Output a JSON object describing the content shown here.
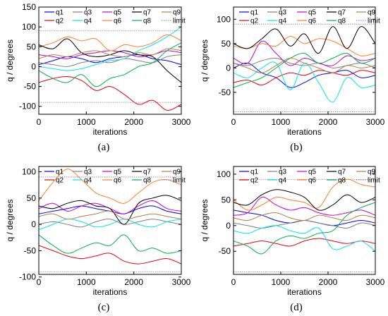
{
  "figure": {
    "captions": [
      "(a)",
      "(b)",
      "(c)",
      "(d)"
    ]
  },
  "colors": {
    "q1": "#0000ff",
    "q2": "#e8000b",
    "q3": "#7f7f7f",
    "q4": "#00e5ff",
    "q5": "#cc00cc",
    "q6": "#ff7f27",
    "q7": "#000000",
    "q8": "#00b050",
    "q9": "#b08040",
    "limit": "#808080"
  },
  "chart_data": [
    {
      "type": "line",
      "caption": "(a)",
      "xlabel": "iterations",
      "ylabel": "q / degrees",
      "xlim": [
        0,
        3000
      ],
      "ylim": [
        -120,
        150
      ],
      "xticks": [
        0,
        1000,
        2000,
        3000
      ],
      "yticks": [
        -100,
        -50,
        0,
        50,
        100,
        150
      ],
      "limit": [
        -90,
        90
      ],
      "legend": [
        "q1",
        "q2",
        "q3",
        "q4",
        "q5",
        "q6",
        "q7",
        "q8",
        "q9",
        "limit"
      ],
      "x": [
        0,
        300,
        600,
        900,
        1200,
        1500,
        1800,
        2100,
        2400,
        2700,
        3000
      ],
      "series": [
        {
          "name": "q1",
          "values": [
            5,
            15,
            25,
            20,
            10,
            20,
            25,
            30,
            20,
            15,
            5
          ]
        },
        {
          "name": "q2",
          "values": [
            -40,
            -30,
            -25,
            -35,
            -60,
            -50,
            -70,
            -95,
            -85,
            -110,
            -95
          ]
        },
        {
          "name": "q3",
          "values": [
            10,
            5,
            0,
            10,
            15,
            10,
            20,
            15,
            10,
            25,
            30
          ]
        },
        {
          "name": "q4",
          "values": [
            0,
            -5,
            -10,
            -5,
            5,
            15,
            20,
            40,
            55,
            75,
            100
          ]
        },
        {
          "name": "q5",
          "values": [
            30,
            25,
            20,
            30,
            35,
            40,
            35,
            25,
            30,
            40,
            35
          ]
        },
        {
          "name": "q6",
          "values": [
            50,
            60,
            75,
            65,
            70,
            40,
            55,
            50,
            60,
            80,
            65
          ]
        },
        {
          "name": "q7",
          "values": [
            55,
            45,
            70,
            35,
            25,
            30,
            40,
            30,
            25,
            -10,
            -40
          ]
        },
        {
          "name": "q8",
          "values": [
            -10,
            -30,
            -40,
            -20,
            -50,
            -30,
            -20,
            0,
            10,
            40,
            60
          ]
        },
        {
          "name": "q9",
          "values": [
            20,
            30,
            25,
            35,
            40,
            30,
            25,
            35,
            30,
            45,
            40
          ]
        }
      ]
    },
    {
      "type": "line",
      "caption": "(b)",
      "xlabel": "iterations",
      "ylabel": "q / degrees",
      "xlim": [
        0,
        3000
      ],
      "ylim": [
        -95,
        125
      ],
      "xticks": [
        0,
        1000,
        2000,
        3000
      ],
      "yticks": [
        -50,
        0,
        50,
        100
      ],
      "limit": [
        -90,
        90
      ],
      "legend": [
        "q1",
        "q2",
        "q3",
        "q4",
        "q5",
        "q6",
        "q7",
        "q8",
        "q9",
        "limit"
      ],
      "x": [
        0,
        300,
        600,
        900,
        1200,
        1500,
        1800,
        2100,
        2400,
        2700,
        3000
      ],
      "series": [
        {
          "name": "q1",
          "values": [
            0,
            10,
            -10,
            -20,
            -40,
            -30,
            -15,
            -10,
            -5,
            -20,
            -15
          ]
        },
        {
          "name": "q2",
          "values": [
            -30,
            -25,
            -35,
            -20,
            -10,
            -15,
            -5,
            -10,
            -15,
            -5,
            -10
          ]
        },
        {
          "name": "q3",
          "values": [
            10,
            5,
            15,
            20,
            10,
            5,
            10,
            0,
            5,
            10,
            0
          ]
        },
        {
          "name": "q4",
          "values": [
            -10,
            -20,
            0,
            10,
            -45,
            10,
            -30,
            -70,
            -20,
            -40,
            -35
          ]
        },
        {
          "name": "q5",
          "values": [
            20,
            10,
            55,
            30,
            5,
            20,
            10,
            5,
            25,
            15,
            20
          ]
        },
        {
          "name": "q6",
          "values": [
            45,
            40,
            50,
            45,
            65,
            50,
            60,
            55,
            40,
            25,
            30
          ]
        },
        {
          "name": "q7",
          "values": [
            50,
            40,
            60,
            80,
            45,
            70,
            30,
            85,
            40,
            85,
            50
          ]
        },
        {
          "name": "q8",
          "values": [
            -40,
            -30,
            -20,
            0,
            20,
            30,
            10,
            20,
            30,
            10,
            20
          ]
        },
        {
          "name": "q9",
          "values": [
            10,
            0,
            -10,
            5,
            20,
            10,
            0,
            -10,
            5,
            0,
            5
          ]
        }
      ]
    },
    {
      "type": "line",
      "caption": "(c)",
      "xlabel": "iterations",
      "ylabel": "q / degrees",
      "xlim": [
        0,
        3000
      ],
      "ylim": [
        -95,
        110
      ],
      "xticks": [
        0,
        1000,
        2000,
        3000
      ],
      "yticks": [
        -100,
        -50,
        0,
        50,
        100
      ],
      "limit": [
        -90,
        90
      ],
      "legend": [
        "q1",
        "q2",
        "q3",
        "q4",
        "q5",
        "q6",
        "q7",
        "q8",
        "q9",
        "limit"
      ],
      "x": [
        0,
        300,
        600,
        900,
        1200,
        1500,
        1800,
        2100,
        2400,
        2700,
        3000
      ],
      "series": [
        {
          "name": "q1",
          "values": [
            20,
            25,
            30,
            35,
            30,
            25,
            20,
            30,
            35,
            25,
            20
          ]
        },
        {
          "name": "q2",
          "values": [
            -40,
            -50,
            -60,
            -65,
            -60,
            -55,
            -70,
            -75,
            -70,
            -65,
            -75
          ]
        },
        {
          "name": "q3",
          "values": [
            0,
            5,
            0,
            -5,
            5,
            10,
            0,
            5,
            10,
            5,
            0
          ]
        },
        {
          "name": "q4",
          "values": [
            -10,
            0,
            10,
            5,
            -5,
            0,
            10,
            0,
            -5,
            5,
            10
          ]
        },
        {
          "name": "q5",
          "values": [
            30,
            40,
            25,
            35,
            40,
            30,
            20,
            35,
            45,
            30,
            25
          ]
        },
        {
          "name": "q6",
          "values": [
            45,
            80,
            105,
            85,
            60,
            50,
            40,
            60,
            80,
            85,
            75
          ]
        },
        {
          "name": "q7",
          "values": [
            35,
            30,
            40,
            45,
            35,
            30,
            0,
            40,
            50,
            55,
            45
          ]
        },
        {
          "name": "q8",
          "values": [
            -20,
            -40,
            -55,
            -45,
            -35,
            -40,
            -20,
            -50,
            -45,
            -55,
            -50
          ]
        },
        {
          "name": "q9",
          "values": [
            15,
            20,
            10,
            15,
            20,
            25,
            10,
            15,
            20,
            15,
            10
          ]
        }
      ]
    },
    {
      "type": "line",
      "caption": "(d)",
      "xlabel": "iterations",
      "ylabel": "q / degrees",
      "xlim": [
        0,
        3000
      ],
      "ylim": [
        -95,
        115
      ],
      "xticks": [
        0,
        1000,
        2000,
        3000
      ],
      "yticks": [
        -50,
        0,
        50,
        100
      ],
      "limit": [
        -90,
        90
      ],
      "legend": [
        "q1",
        "q2",
        "q3",
        "q4",
        "q5",
        "q6",
        "q7",
        "q8",
        "q9",
        "limit"
      ],
      "x": [
        0,
        300,
        600,
        900,
        1200,
        1500,
        1800,
        2100,
        2400,
        2700,
        3000
      ],
      "series": [
        {
          "name": "q1",
          "values": [
            30,
            25,
            20,
            10,
            5,
            10,
            5,
            0,
            5,
            10,
            5
          ]
        },
        {
          "name": "q2",
          "values": [
            -40,
            -35,
            -30,
            -35,
            -40,
            -30,
            -25,
            -30,
            -35,
            -30,
            -35
          ]
        },
        {
          "name": "q3",
          "values": [
            5,
            0,
            -5,
            0,
            5,
            10,
            5,
            0,
            -5,
            5,
            0
          ]
        },
        {
          "name": "q4",
          "values": [
            -10,
            -15,
            -5,
            0,
            -10,
            -15,
            -5,
            -45,
            -40,
            -30,
            -50
          ]
        },
        {
          "name": "q5",
          "values": [
            20,
            25,
            55,
            40,
            30,
            35,
            25,
            20,
            25,
            30,
            20
          ]
        },
        {
          "name": "q6",
          "values": [
            50,
            30,
            40,
            55,
            50,
            45,
            35,
            75,
            90,
            80,
            75
          ]
        },
        {
          "name": "q7",
          "values": [
            45,
            40,
            60,
            70,
            65,
            55,
            30,
            40,
            60,
            45,
            55
          ]
        },
        {
          "name": "q8",
          "values": [
            -30,
            -40,
            -55,
            -30,
            -20,
            -25,
            -15,
            -10,
            20,
            35,
            45
          ]
        },
        {
          "name": "q9",
          "values": [
            15,
            10,
            20,
            25,
            15,
            10,
            20,
            15,
            10,
            20,
            15
          ]
        }
      ]
    }
  ]
}
